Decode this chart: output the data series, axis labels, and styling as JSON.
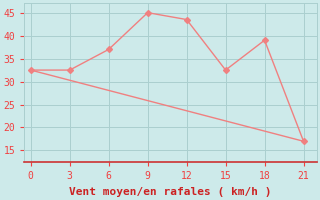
{
  "line1_x": [
    0,
    3,
    6,
    9,
    12,
    15,
    18,
    21
  ],
  "line1_y": [
    32.5,
    32.5,
    37,
    45,
    43.5,
    32.5,
    39,
    17
  ],
  "line2_x": [
    0,
    21
  ],
  "line2_y": [
    32.5,
    17
  ],
  "line_color": "#f08080",
  "marker_color": "#f08080",
  "bg_color": "#cdeaea",
  "grid_color": "#aacfcf",
  "axis_color": "#cc3333",
  "spine_bottom_color": "#cc3333",
  "tick_color": "#f04040",
  "xlabel": "Vent moyen/en rafales ( km/h )",
  "xlabel_color": "#cc2222",
  "xlabel_fontsize": 8,
  "xticks": [
    0,
    3,
    6,
    9,
    12,
    15,
    18,
    21
  ],
  "yticks": [
    15,
    20,
    25,
    30,
    35,
    40,
    45
  ],
  "ylim": [
    12.5,
    47
  ],
  "xlim": [
    -0.5,
    22
  ],
  "marker_size": 3,
  "line_width": 1.0
}
